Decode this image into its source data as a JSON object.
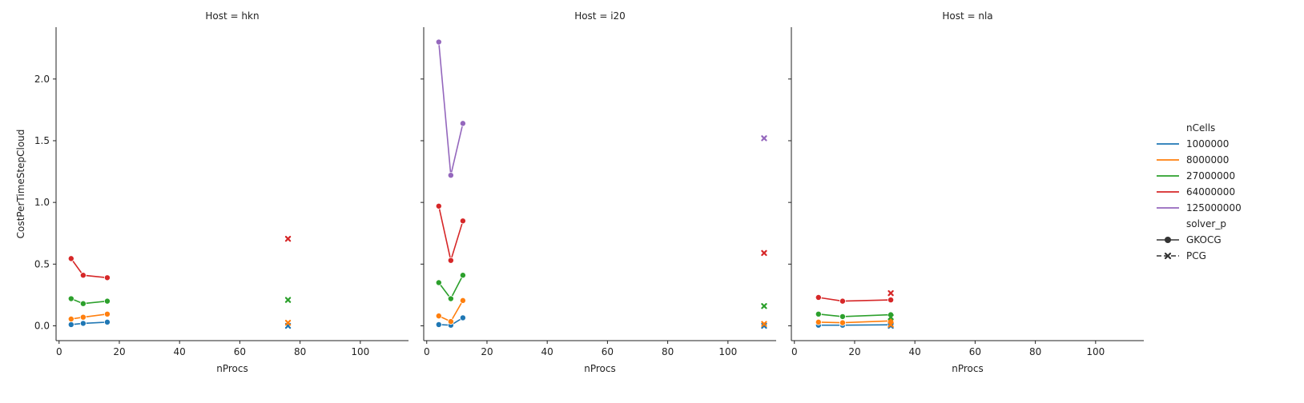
{
  "chart_data": {
    "type": "line",
    "ylabel": "CostPerTimeStepCloud",
    "xlabel": "nProcs",
    "xlim": [
      -1,
      116
    ],
    "ylim": [
      -0.12,
      2.42
    ],
    "xticks": [
      0,
      20,
      40,
      60,
      80,
      100
    ],
    "yticks": [
      0.0,
      0.5,
      1.0,
      1.5,
      2.0
    ],
    "xtick_labels": [
      "0",
      "20",
      "40",
      "60",
      "80",
      "100"
    ],
    "ytick_labels": [
      "0.0",
      "0.5",
      "1.0",
      "1.5",
      "2.0"
    ],
    "legend": {
      "placement": "right",
      "hue_title": "nCells",
      "hue_entries": [
        {
          "label": "1000000",
          "color": "#1f77b4"
        },
        {
          "label": "8000000",
          "color": "#ff7f0e"
        },
        {
          "label": "27000000",
          "color": "#2ca02c"
        },
        {
          "label": "64000000",
          "color": "#d62728"
        },
        {
          "label": "125000000",
          "color": "#9467bd"
        }
      ],
      "style_title": "solver_p",
      "style_entries": [
        {
          "label": "GKOCG",
          "marker": "circle",
          "dashed": false
        },
        {
          "label": "PCG",
          "marker": "x",
          "dashed": true
        }
      ]
    },
    "panels": [
      {
        "title": "Host = hkn",
        "series": [
          {
            "nCells": "1000000",
            "solver": "GKOCG",
            "x": [
              4,
              8,
              16
            ],
            "y": [
              0.01,
              0.02,
              0.03
            ]
          },
          {
            "nCells": "8000000",
            "solver": "GKOCG",
            "x": [
              4,
              8,
              16
            ],
            "y": [
              0.055,
              0.07,
              0.095
            ]
          },
          {
            "nCells": "27000000",
            "solver": "GKOCG",
            "x": [
              4,
              8,
              16
            ],
            "y": [
              0.22,
              0.18,
              0.2
            ]
          },
          {
            "nCells": "64000000",
            "solver": "GKOCG",
            "x": [
              4,
              8,
              16
            ],
            "y": [
              0.545,
              0.41,
              0.39
            ]
          },
          {
            "nCells": "1000000",
            "solver": "PCG",
            "x": [
              76
            ],
            "y": [
              0.0
            ]
          },
          {
            "nCells": "8000000",
            "solver": "PCG",
            "x": [
              76
            ],
            "y": [
              0.025
            ]
          },
          {
            "nCells": "27000000",
            "solver": "PCG",
            "x": [
              76
            ],
            "y": [
              0.21
            ]
          },
          {
            "nCells": "64000000",
            "solver": "PCG",
            "x": [
              76
            ],
            "y": [
              0.705
            ]
          }
        ]
      },
      {
        "title": "Host = i20",
        "series": [
          {
            "nCells": "1000000",
            "solver": "GKOCG",
            "x": [
              4,
              8,
              12
            ],
            "y": [
              0.01,
              0.005,
              0.065
            ]
          },
          {
            "nCells": "8000000",
            "solver": "GKOCG",
            "x": [
              4,
              8,
              12
            ],
            "y": [
              0.08,
              0.035,
              0.205
            ]
          },
          {
            "nCells": "27000000",
            "solver": "GKOCG",
            "x": [
              4,
              8,
              12
            ],
            "y": [
              0.35,
              0.22,
              0.41
            ]
          },
          {
            "nCells": "64000000",
            "solver": "GKOCG",
            "x": [
              4,
              8,
              12
            ],
            "y": [
              0.97,
              0.53,
              0.85
            ]
          },
          {
            "nCells": "125000000",
            "solver": "GKOCG",
            "x": [
              4,
              8,
              12
            ],
            "y": [
              2.3,
              1.22,
              1.64
            ]
          },
          {
            "nCells": "1000000",
            "solver": "PCG",
            "x": [
              112
            ],
            "y": [
              0.0
            ]
          },
          {
            "nCells": "8000000",
            "solver": "PCG",
            "x": [
              112
            ],
            "y": [
              0.015
            ]
          },
          {
            "nCells": "27000000",
            "solver": "PCG",
            "x": [
              112
            ],
            "y": [
              0.16
            ]
          },
          {
            "nCells": "64000000",
            "solver": "PCG",
            "x": [
              112
            ],
            "y": [
              0.59
            ]
          },
          {
            "nCells": "125000000",
            "solver": "PCG",
            "x": [
              112
            ],
            "y": [
              1.52
            ]
          }
        ]
      },
      {
        "title": "Host = nla",
        "series": [
          {
            "nCells": "1000000",
            "solver": "GKOCG",
            "x": [
              8,
              16,
              32
            ],
            "y": [
              0.005,
              0.005,
              0.008
            ]
          },
          {
            "nCells": "8000000",
            "solver": "GKOCG",
            "x": [
              8,
              16,
              32
            ],
            "y": [
              0.03,
              0.025,
              0.04
            ]
          },
          {
            "nCells": "27000000",
            "solver": "GKOCG",
            "x": [
              8,
              16,
              32
            ],
            "y": [
              0.095,
              0.075,
              0.09
            ]
          },
          {
            "nCells": "64000000",
            "solver": "GKOCG",
            "x": [
              8,
              16,
              32
            ],
            "y": [
              0.23,
              0.2,
              0.21
            ]
          },
          {
            "nCells": "1000000",
            "solver": "PCG",
            "x": [
              32
            ],
            "y": [
              0.0
            ]
          },
          {
            "nCells": "8000000",
            "solver": "PCG",
            "x": [
              32
            ],
            "y": [
              0.01
            ]
          },
          {
            "nCells": "27000000",
            "solver": "PCG",
            "x": [
              32
            ],
            "y": [
              0.07
            ]
          },
          {
            "nCells": "64000000",
            "solver": "PCG",
            "x": [
              32
            ],
            "y": [
              0.265
            ]
          }
        ]
      }
    ]
  }
}
